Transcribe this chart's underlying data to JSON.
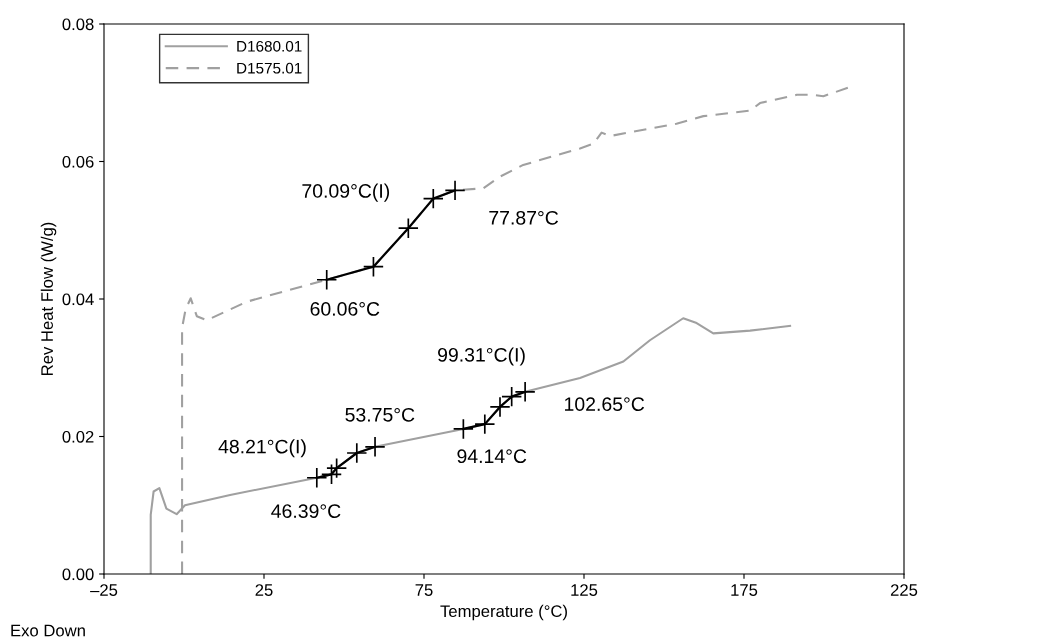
{
  "chart_data": {
    "type": "line",
    "xlabel": "Temperature (°C)",
    "ylabel": "Rev Heat Flow (W/g)",
    "xlim": [
      -25,
      225
    ],
    "xticks": [
      {
        "value": -25,
        "label": "–25"
      },
      25,
      75,
      125,
      175,
      225
    ],
    "ylim": [
      0,
      0.08
    ],
    "yticks": [
      {
        "value": 0,
        "label": "0.00"
      },
      {
        "value": 0.02,
        "label": "0.02"
      },
      {
        "value": 0.04,
        "label": "0.04"
      },
      {
        "value": 0.06,
        "label": "0.06"
      },
      {
        "value": 0.08,
        "label": "0.08"
      }
    ],
    "grid": false,
    "legend": "top left",
    "series": [
      {
        "name": "D1680.01",
        "color": "#a0a0a0",
        "line_style": "solid",
        "x": [
          -10.4,
          -10.4,
          -9.5,
          -7.7,
          -5.5,
          -2.3,
          0.3,
          14.4,
          41.5,
          46.1,
          47.7,
          54,
          59.7,
          87.3,
          94,
          98.75,
          102.4,
          106.6,
          123.75,
          137.3,
          145.6,
          156,
          160.2,
          165.4,
          176.9,
          189.4
        ],
        "values": [
          0,
          0.0086,
          0.012,
          0.0125,
          0.0095,
          0.0087,
          0.01,
          0.0115,
          0.014,
          0.0145,
          0.0154,
          0.0176,
          0.0185,
          0.0211,
          0.0218,
          0.0243,
          0.0258,
          0.0265,
          0.0285,
          0.0309,
          0.034,
          0.0372,
          0.0365,
          0.035,
          0.0354,
          0.0361
        ]
      },
      {
        "name": "D1575.01",
        "color": "#a0a0a0",
        "line_style": "dashed",
        "x": [
          -0.6,
          -0.6,
          0.5,
          2.1,
          4.0,
          7.1,
          19.6,
          44.6,
          59.2,
          70.1,
          77.9,
          84.7,
          93.5,
          98.75,
          106,
          123.75,
          128,
          130.5,
          133.1,
          153.9,
          162.3,
          176.9,
          180,
          191.5,
          196.7,
          199.8,
          208.6
        ],
        "values": [
          0,
          0.0358,
          0.0385,
          0.0401,
          0.0375,
          0.0369,
          0.0396,
          0.0428,
          0.0447,
          0.0503,
          0.0546,
          0.0558,
          0.0561,
          0.0578,
          0.0595,
          0.0619,
          0.0626,
          0.0642,
          0.0637,
          0.0655,
          0.0666,
          0.0674,
          0.0685,
          0.0697,
          0.0697,
          0.0695,
          0.0709
        ]
      },
      {
        "color": "#000000",
        "line_style": "solid",
        "marker": "cross",
        "x": [
          44.6,
          59.2,
          70.1,
          77.9,
          84.7
        ],
        "values": [
          0.0428,
          0.0447,
          0.0503,
          0.0546,
          0.0558
        ]
      },
      {
        "color": "#000000",
        "line_style": "solid",
        "marker": "cross",
        "x": [
          41.5,
          46.1,
          47.7,
          54,
          59.7
        ],
        "values": [
          0.014,
          0.0145,
          0.0154,
          0.0176,
          0.0185
        ]
      },
      {
        "color": "#000000",
        "line_style": "solid",
        "marker": "cross",
        "x": [
          87.3,
          94,
          98.75,
          102.4,
          106.6
        ],
        "values": [
          0.0211,
          0.0218,
          0.0243,
          0.0258,
          0.0265
        ]
      }
    ],
    "annotations": [
      {
        "text": "70.09°C(I)",
        "x": 70.1,
        "y": 0.0503
      },
      {
        "text": "77.87°C",
        "x": 77.9,
        "y": 0.0546
      },
      {
        "text": "60.06°C",
        "x": 59.2,
        "y": 0.0447
      },
      {
        "text": "48.21°C(I)",
        "x": 47.7,
        "y": 0.0154
      },
      {
        "text": "46.39°C",
        "x": 46.1,
        "y": 0.0145
      },
      {
        "text": "53.75°C",
        "x": 54,
        "y": 0.0176
      },
      {
        "text": "94.14°C",
        "x": 94,
        "y": 0.0218
      },
      {
        "text": "99.31°C(I)",
        "x": 98.75,
        "y": 0.0243
      },
      {
        "text": "102.65°C",
        "x": 102.4,
        "y": 0.0258
      },
      "Exo Down"
    ]
  }
}
